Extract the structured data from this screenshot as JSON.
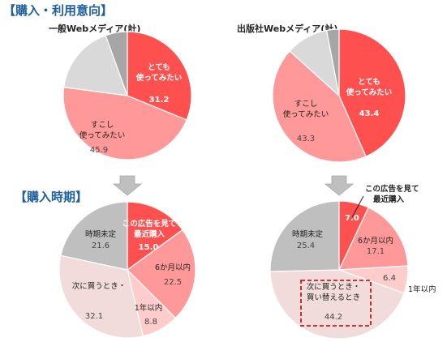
{
  "sections": {
    "intent": "【購入・利用意向】",
    "timing": "【購入時期】"
  },
  "chart_data": [
    {
      "type": "pie",
      "id": "intent-general",
      "title": "一般Webメディア(計)",
      "slices": [
        {
          "label": "とても\n使ってみたい",
          "value": 31.2,
          "color": "#ff5050"
        },
        {
          "label": "すこし\n使ってみたい",
          "value": 45.9,
          "color": "#ff9999"
        },
        {
          "label": "",
          "value": 17.4,
          "color": "#d9d9d9"
        },
        {
          "label": "",
          "value": 5.5,
          "color": "#a6a6a6"
        }
      ]
    },
    {
      "type": "pie",
      "id": "intent-publisher",
      "title": "出版社Webメディア(計)",
      "slices": [
        {
          "label": "とても\n使ってみたい",
          "value": 43.4,
          "color": "#ff5050"
        },
        {
          "label": "すこし\n使ってみたい",
          "value": 43.3,
          "color": "#ff9999"
        },
        {
          "label": "",
          "value": 10.3,
          "color": "#d9d9d9"
        },
        {
          "label": "",
          "value": 3.0,
          "color": "#a6a6a6"
        }
      ]
    },
    {
      "type": "pie",
      "id": "timing-general",
      "title": "",
      "slices": [
        {
          "label": "この広告を見て\n最近購入",
          "value": 15.0,
          "color": "#ff5050"
        },
        {
          "label": "6か月以内",
          "value": 22.5,
          "color": "#ff9999"
        },
        {
          "label": "1年以内",
          "value": 8.8,
          "color": "#ffcccc"
        },
        {
          "label": "次に買うとき・",
          "value": 32.1,
          "color": "#f2dcdb"
        },
        {
          "label": "時期未定",
          "value": 21.6,
          "color": "#bfbfbf"
        }
      ]
    },
    {
      "type": "pie",
      "id": "timing-publisher",
      "title": "",
      "slices": [
        {
          "label": "この広告を見て\n最近購入",
          "value": 7.0,
          "color": "#ff5050"
        },
        {
          "label": "6か月以内",
          "value": 17.1,
          "color": "#ff9999"
        },
        {
          "label": "1年以内",
          "value": 6.4,
          "color": "#ffcccc"
        },
        {
          "label": "次に買うとき・\n買い替えるとき",
          "value": 44.2,
          "color": "#f2dcdb"
        },
        {
          "label": "時期未定",
          "value": 25.4,
          "color": "#bfbfbf"
        }
      ]
    }
  ],
  "arrow_color": "#bfbfbf",
  "highlight_color": "#c00000"
}
